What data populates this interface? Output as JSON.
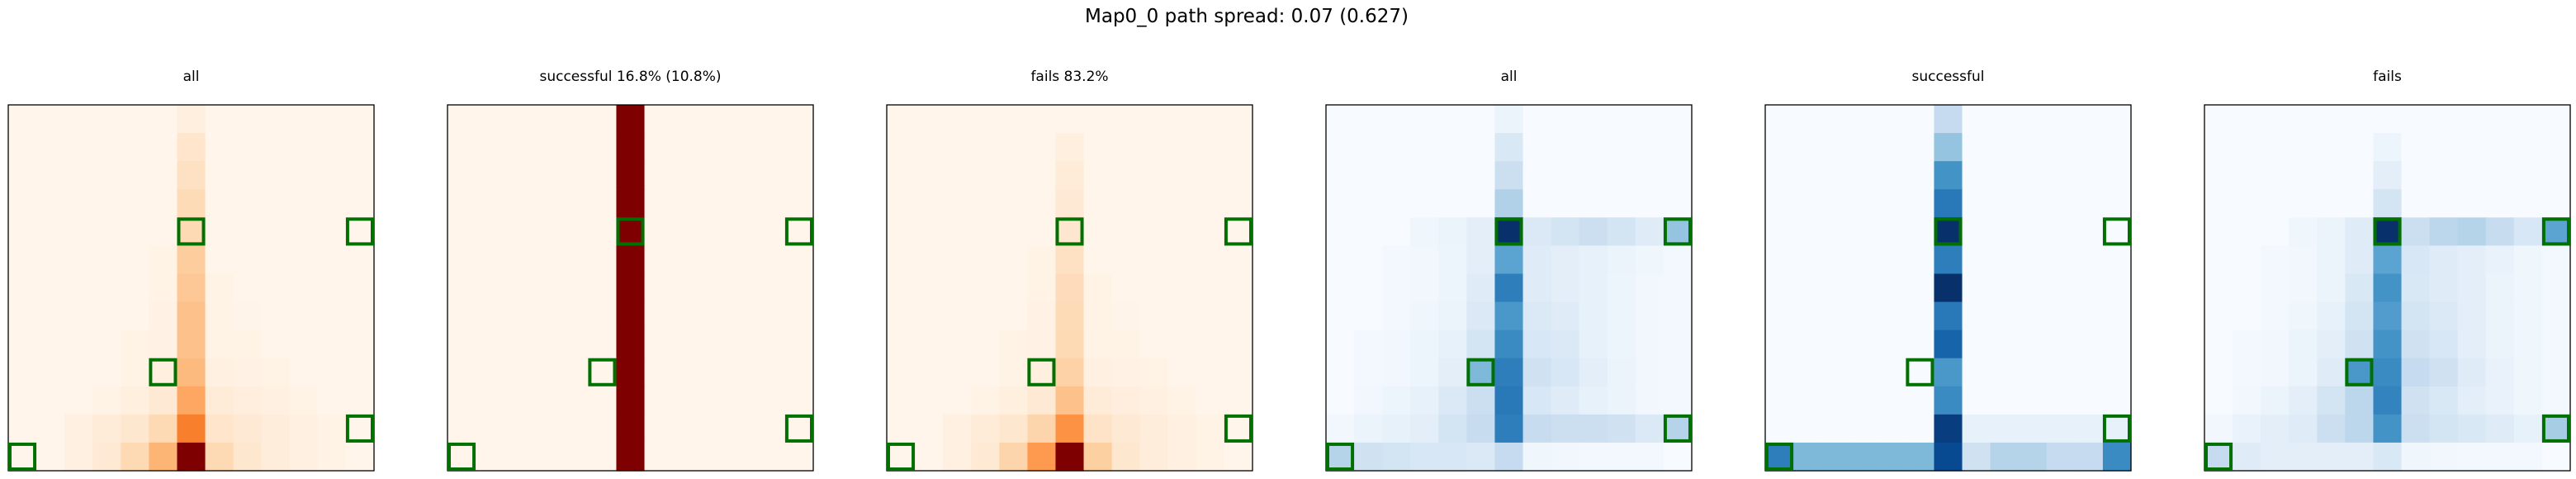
{
  "figure": {
    "suptitle": "Map0_0 path spread: 0.07 (0.627)"
  },
  "colors": {
    "target_edge": "#007000",
    "axes_edge": "#000000",
    "oranges_low": "#fff5eb",
    "oranges_high": "#7f0000",
    "blues_low": "#f7fbff",
    "blues_high": "#08306b"
  },
  "chart_data": [
    {
      "type": "heatmap",
      "title": "all",
      "colormap": "OrRd",
      "grid": [
        [
          0,
          0,
          0,
          0,
          0,
          0,
          0.05,
          0,
          0,
          0,
          0,
          0,
          0
        ],
        [
          0,
          0,
          0,
          0,
          0,
          0,
          0.13,
          0,
          0,
          0,
          0,
          0,
          0
        ],
        [
          0,
          0,
          0,
          0,
          0,
          0,
          0.16,
          0,
          0,
          0,
          0,
          0,
          0
        ],
        [
          0,
          0,
          0,
          0,
          0,
          0,
          0.19,
          0,
          0,
          0,
          0,
          0,
          0
        ],
        [
          0,
          0,
          0,
          0,
          0,
          0,
          0.2,
          0,
          0,
          0,
          0,
          0,
          0
        ],
        [
          0,
          0,
          0,
          0,
          0,
          0.02,
          0.26,
          0,
          0,
          0,
          0,
          0,
          0
        ],
        [
          0,
          0,
          0,
          0,
          0,
          0.02,
          0.28,
          0.02,
          0,
          0,
          0,
          0,
          0
        ],
        [
          0,
          0,
          0,
          0,
          0,
          0.03,
          0.3,
          0.02,
          0.01,
          0,
          0,
          0,
          0
        ],
        [
          0,
          0,
          0,
          0,
          0.02,
          0.03,
          0.3,
          0.02,
          0.02,
          0,
          0,
          0,
          0
        ],
        [
          0,
          0,
          0,
          0,
          0.02,
          0.05,
          0.33,
          0.04,
          0.03,
          0.02,
          0,
          0,
          0
        ],
        [
          0,
          0,
          0,
          0.02,
          0.05,
          0.1,
          0.4,
          0.08,
          0.06,
          0.04,
          0.02,
          0,
          0
        ],
        [
          0,
          0,
          0.04,
          0.08,
          0.12,
          0.2,
          0.55,
          0.13,
          0.1,
          0.07,
          0.04,
          0.02,
          0
        ],
        [
          0,
          0,
          0.04,
          0.1,
          0.2,
          0.35,
          1.0,
          0.2,
          0.12,
          0.07,
          0.04,
          0.02,
          0
        ]
      ],
      "targets": [
        [
          6,
          4
        ],
        [
          12,
          4
        ],
        [
          5,
          9
        ],
        [
          0,
          12
        ],
        [
          12,
          11
        ]
      ]
    },
    {
      "type": "heatmap",
      "title": "successful 16.8% (10.8%)",
      "colormap": "OrRd",
      "grid": [
        [
          0,
          0,
          0,
          0,
          0,
          0,
          1,
          0,
          0,
          0,
          0,
          0,
          0
        ],
        [
          0,
          0,
          0,
          0,
          0,
          0,
          1,
          0,
          0,
          0,
          0,
          0,
          0
        ],
        [
          0,
          0,
          0,
          0,
          0,
          0,
          1,
          0,
          0,
          0,
          0,
          0,
          0
        ],
        [
          0,
          0,
          0,
          0,
          0,
          0,
          1,
          0,
          0,
          0,
          0,
          0,
          0
        ],
        [
          0,
          0,
          0,
          0,
          0,
          0,
          1,
          0,
          0,
          0,
          0,
          0,
          0
        ],
        [
          0,
          0,
          0,
          0,
          0,
          0,
          1,
          0,
          0,
          0,
          0,
          0,
          0
        ],
        [
          0,
          0,
          0,
          0,
          0,
          0,
          1,
          0,
          0,
          0,
          0,
          0,
          0
        ],
        [
          0,
          0,
          0,
          0,
          0,
          0,
          1,
          0,
          0,
          0,
          0,
          0,
          0
        ],
        [
          0,
          0,
          0,
          0,
          0,
          0,
          1,
          0,
          0,
          0,
          0,
          0,
          0
        ],
        [
          0,
          0,
          0,
          0,
          0,
          0,
          1,
          0,
          0,
          0,
          0,
          0,
          0
        ],
        [
          0,
          0,
          0,
          0,
          0,
          0,
          1,
          0,
          0,
          0,
          0,
          0,
          0
        ],
        [
          0,
          0,
          0,
          0,
          0,
          0,
          1,
          0,
          0,
          0,
          0,
          0,
          0
        ],
        [
          0,
          0,
          0,
          0,
          0,
          0,
          1,
          0,
          0,
          0,
          0,
          0,
          0
        ]
      ],
      "targets": [
        [
          6,
          4
        ],
        [
          12,
          4
        ],
        [
          5,
          9
        ],
        [
          0,
          12
        ],
        [
          12,
          11
        ]
      ]
    },
    {
      "type": "heatmap",
      "title": "fails 83.2%",
      "colormap": "OrRd",
      "grid": [
        [
          0,
          0,
          0,
          0,
          0,
          0,
          0,
          0,
          0,
          0,
          0,
          0,
          0
        ],
        [
          0,
          0,
          0,
          0,
          0,
          0,
          0.05,
          0,
          0,
          0,
          0,
          0,
          0
        ],
        [
          0,
          0,
          0,
          0,
          0,
          0,
          0.08,
          0,
          0,
          0,
          0,
          0,
          0
        ],
        [
          0,
          0,
          0,
          0,
          0,
          0,
          0.1,
          0,
          0,
          0,
          0,
          0,
          0
        ],
        [
          0,
          0,
          0,
          0,
          0,
          0,
          0.12,
          0,
          0,
          0,
          0,
          0,
          0
        ],
        [
          0,
          0,
          0,
          0,
          0,
          0.02,
          0.16,
          0,
          0,
          0,
          0,
          0,
          0
        ],
        [
          0,
          0,
          0,
          0,
          0,
          0.02,
          0.18,
          0.02,
          0,
          0,
          0,
          0,
          0
        ],
        [
          0,
          0,
          0,
          0,
          0,
          0.03,
          0.19,
          0.02,
          0.01,
          0,
          0,
          0,
          0
        ],
        [
          0,
          0,
          0,
          0,
          0.02,
          0.03,
          0.2,
          0.02,
          0.02,
          0,
          0,
          0,
          0
        ],
        [
          0,
          0,
          0,
          0,
          0.02,
          0.05,
          0.24,
          0.04,
          0.03,
          0.02,
          0,
          0,
          0
        ],
        [
          0,
          0,
          0,
          0.02,
          0.05,
          0.1,
          0.3,
          0.08,
          0.06,
          0.04,
          0.02,
          0,
          0
        ],
        [
          0,
          0,
          0.04,
          0.08,
          0.12,
          0.22,
          0.48,
          0.14,
          0.1,
          0.07,
          0.04,
          0.02,
          0
        ],
        [
          0,
          0,
          0.04,
          0.1,
          0.22,
          0.45,
          1.0,
          0.25,
          0.12,
          0.07,
          0.04,
          0.02,
          0
        ]
      ],
      "targets": [
        [
          6,
          4
        ],
        [
          12,
          4
        ],
        [
          5,
          9
        ],
        [
          0,
          12
        ],
        [
          12,
          11
        ]
      ]
    },
    {
      "type": "heatmap",
      "title": "all",
      "colormap": "Blues",
      "grid": [
        [
          0,
          0,
          0,
          0,
          0,
          0,
          0.06,
          0,
          0,
          0,
          0,
          0,
          0
        ],
        [
          0,
          0,
          0,
          0,
          0,
          0,
          0.15,
          0,
          0,
          0,
          0,
          0,
          0
        ],
        [
          0,
          0,
          0,
          0,
          0,
          0,
          0.22,
          0,
          0,
          0,
          0,
          0,
          0
        ],
        [
          0,
          0,
          0,
          0,
          0,
          0,
          0.32,
          0,
          0,
          0,
          0,
          0,
          0
        ],
        [
          0,
          0,
          0,
          0.04,
          0.06,
          0.1,
          1.0,
          0.14,
          0.18,
          0.22,
          0.18,
          0.12,
          0.4
        ],
        [
          0,
          0,
          0.02,
          0.03,
          0.05,
          0.1,
          0.55,
          0.12,
          0.1,
          0.08,
          0.06,
          0.04,
          0.02
        ],
        [
          0,
          0,
          0.02,
          0.03,
          0.05,
          0.12,
          0.7,
          0.12,
          0.1,
          0.08,
          0.05,
          0.03,
          0.02
        ],
        [
          0,
          0,
          0.02,
          0.04,
          0.06,
          0.14,
          0.6,
          0.14,
          0.12,
          0.08,
          0.05,
          0.03,
          0.02
        ],
        [
          0,
          0.02,
          0.03,
          0.05,
          0.08,
          0.18,
          0.65,
          0.16,
          0.14,
          0.08,
          0.05,
          0.03,
          0.02
        ],
        [
          0,
          0.02,
          0.03,
          0.05,
          0.1,
          0.45,
          0.7,
          0.2,
          0.16,
          0.1,
          0.06,
          0.03,
          0.02
        ],
        [
          0,
          0.03,
          0.05,
          0.08,
          0.14,
          0.22,
          0.72,
          0.16,
          0.12,
          0.08,
          0.06,
          0.03,
          0.02
        ],
        [
          0.03,
          0.06,
          0.08,
          0.1,
          0.18,
          0.24,
          0.7,
          0.24,
          0.22,
          0.22,
          0.2,
          0.14,
          0.3
        ],
        [
          0.3,
          0.2,
          0.18,
          0.16,
          0.16,
          0.14,
          0.25,
          0.04,
          0.03,
          0.02,
          0.02,
          0.02,
          0
        ]
      ],
      "targets": [
        [
          6,
          4
        ],
        [
          12,
          4
        ],
        [
          5,
          9
        ],
        [
          0,
          12
        ],
        [
          12,
          11
        ]
      ]
    },
    {
      "type": "heatmap",
      "title": "successful",
      "colormap": "Blues",
      "grid": [
        [
          0,
          0,
          0,
          0,
          0,
          0,
          0.25,
          0,
          0,
          0,
          0,
          0,
          0
        ],
        [
          0,
          0,
          0,
          0,
          0,
          0,
          0.4,
          0,
          0,
          0,
          0,
          0,
          0
        ],
        [
          0,
          0,
          0,
          0,
          0,
          0,
          0.62,
          0,
          0,
          0,
          0,
          0,
          0
        ],
        [
          0,
          0,
          0,
          0,
          0,
          0,
          0.72,
          0,
          0,
          0,
          0,
          0,
          0
        ],
        [
          0,
          0,
          0,
          0,
          0,
          0,
          1.0,
          0,
          0,
          0,
          0,
          0,
          0
        ],
        [
          0,
          0,
          0,
          0,
          0,
          0,
          0.7,
          0,
          0,
          0,
          0,
          0,
          0
        ],
        [
          0,
          0,
          0,
          0,
          0,
          0,
          1.0,
          0,
          0,
          0,
          0,
          0,
          0
        ],
        [
          0,
          0,
          0,
          0,
          0,
          0,
          0.72,
          0,
          0,
          0,
          0,
          0,
          0
        ],
        [
          0,
          0,
          0,
          0,
          0,
          0,
          0.8,
          0,
          0,
          0,
          0,
          0,
          0
        ],
        [
          0,
          0,
          0,
          0,
          0,
          0,
          0.6,
          0,
          0,
          0,
          0,
          0,
          0
        ],
        [
          0,
          0,
          0,
          0,
          0,
          0,
          0.65,
          0,
          0,
          0,
          0,
          0,
          0
        ],
        [
          0,
          0,
          0,
          0,
          0,
          0,
          0.95,
          0.08,
          0.08,
          0.08,
          0.08,
          0.08,
          0.08
        ],
        [
          0.7,
          0.45,
          0.45,
          0.45,
          0.45,
          0.45,
          0.9,
          0.2,
          0.3,
          0.3,
          0.25,
          0.25,
          0.65
        ]
      ],
      "targets": [
        [
          6,
          4
        ],
        [
          12,
          4
        ],
        [
          5,
          9
        ],
        [
          0,
          12
        ],
        [
          12,
          11
        ]
      ]
    },
    {
      "type": "heatmap",
      "title": "fails",
      "colormap": "Blues",
      "grid": [
        [
          0,
          0,
          0,
          0,
          0,
          0,
          0,
          0,
          0,
          0,
          0,
          0,
          0
        ],
        [
          0,
          0,
          0,
          0,
          0,
          0,
          0.05,
          0,
          0,
          0,
          0,
          0,
          0
        ],
        [
          0,
          0,
          0,
          0,
          0,
          0,
          0.1,
          0,
          0,
          0,
          0,
          0,
          0
        ],
        [
          0,
          0,
          0,
          0,
          0,
          0,
          0.18,
          0,
          0,
          0,
          0,
          0,
          0
        ],
        [
          0,
          0,
          0,
          0.04,
          0.06,
          0.12,
          1.0,
          0.22,
          0.28,
          0.3,
          0.24,
          0.16,
          0.55
        ],
        [
          0,
          0,
          0.02,
          0.03,
          0.06,
          0.12,
          0.55,
          0.16,
          0.12,
          0.1,
          0.07,
          0.04,
          0.02
        ],
        [
          0,
          0,
          0.02,
          0.03,
          0.06,
          0.15,
          0.62,
          0.15,
          0.12,
          0.1,
          0.06,
          0.04,
          0.02
        ],
        [
          0,
          0,
          0.02,
          0.04,
          0.08,
          0.18,
          0.58,
          0.18,
          0.14,
          0.1,
          0.06,
          0.04,
          0.02
        ],
        [
          0,
          0.02,
          0.03,
          0.06,
          0.1,
          0.2,
          0.62,
          0.2,
          0.16,
          0.1,
          0.06,
          0.04,
          0.02
        ],
        [
          0,
          0.02,
          0.03,
          0.06,
          0.12,
          0.6,
          0.65,
          0.25,
          0.2,
          0.12,
          0.07,
          0.04,
          0.02
        ],
        [
          0,
          0.03,
          0.06,
          0.1,
          0.18,
          0.28,
          0.68,
          0.2,
          0.15,
          0.1,
          0.07,
          0.04,
          0.02
        ],
        [
          0.03,
          0.07,
          0.1,
          0.12,
          0.22,
          0.28,
          0.62,
          0.22,
          0.18,
          0.15,
          0.12,
          0.08,
          0.35
        ],
        [
          0.25,
          0.12,
          0.1,
          0.1,
          0.1,
          0.1,
          0.15,
          0.04,
          0.03,
          0.02,
          0.02,
          0.02,
          0
        ]
      ],
      "targets": [
        [
          6,
          4
        ],
        [
          12,
          4
        ],
        [
          5,
          9
        ],
        [
          0,
          12
        ],
        [
          12,
          11
        ]
      ]
    }
  ]
}
